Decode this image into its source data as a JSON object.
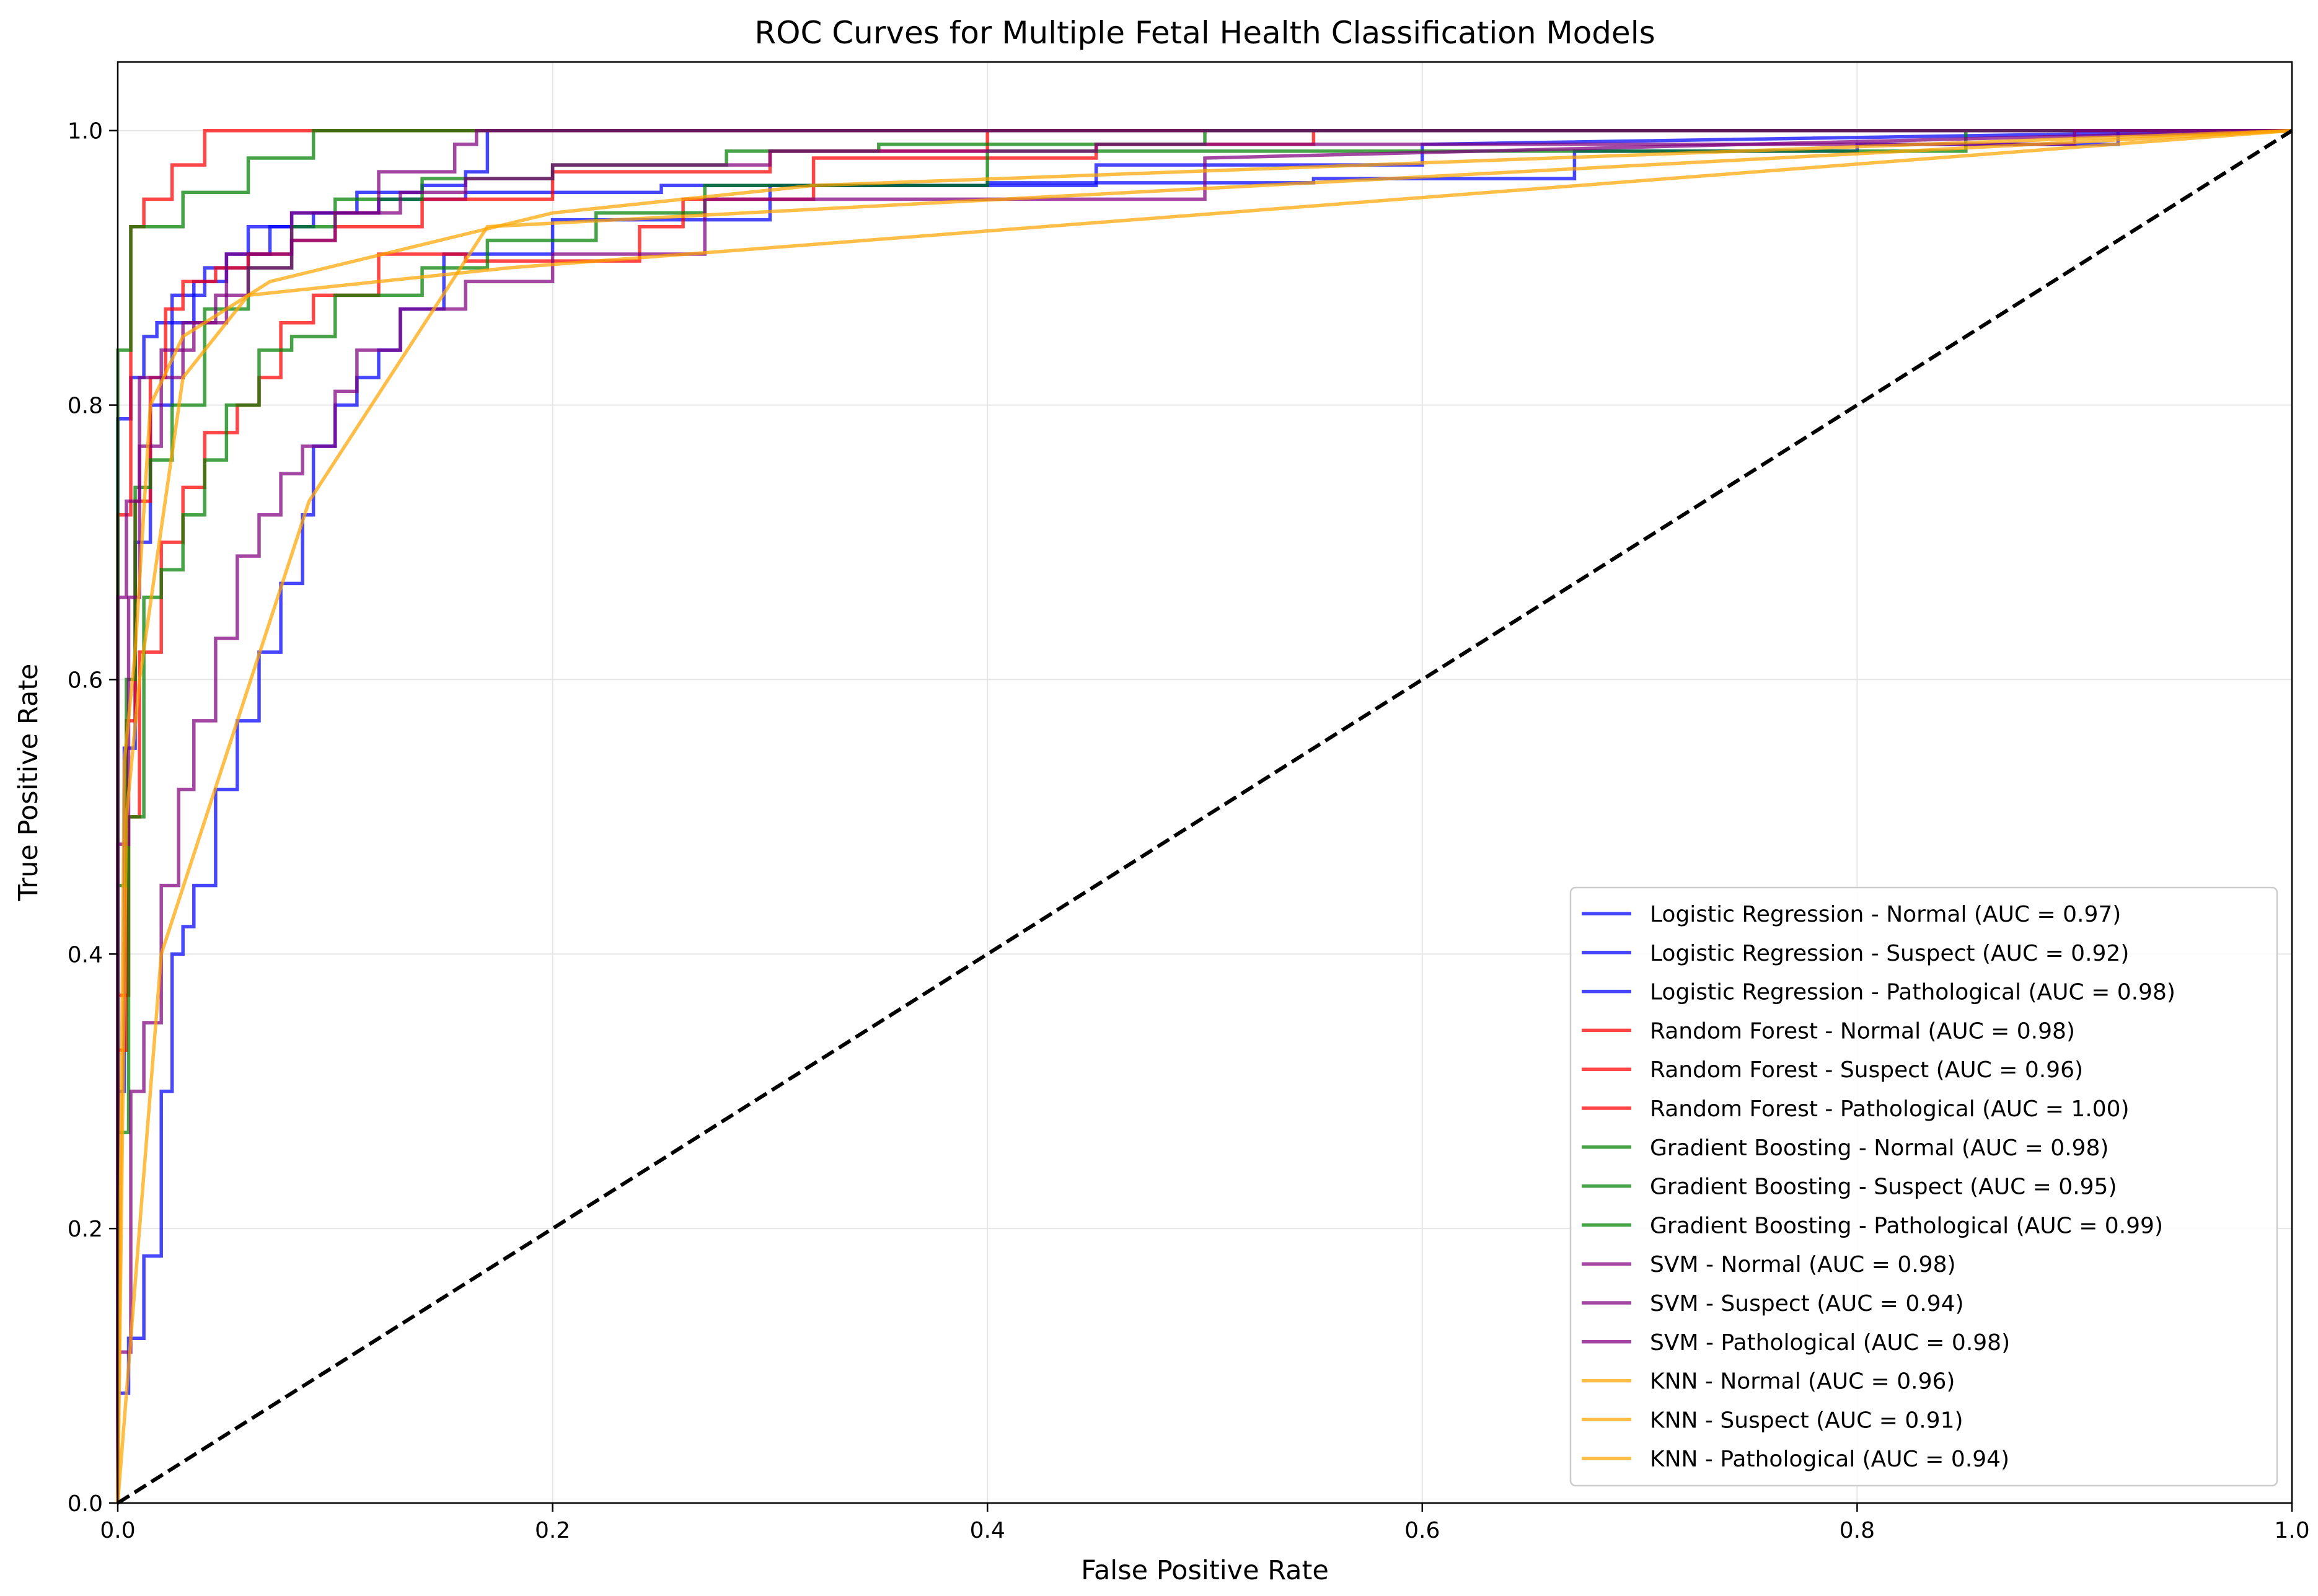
{
  "chart_data": {
    "type": "line",
    "title": "ROC Curves for Multiple Fetal Health Classification Models",
    "xlabel": "False Positive Rate",
    "ylabel": "True Positive Rate",
    "xlim": [
      0,
      1
    ],
    "ylim": [
      0,
      1.05
    ],
    "xticks": [
      0.0,
      0.2,
      0.4,
      0.6,
      0.8,
      1.0
    ],
    "yticks": [
      0.0,
      0.2,
      0.4,
      0.6,
      0.8,
      1.0
    ],
    "xtick_labels": [
      "0.0",
      "0.2",
      "0.4",
      "0.6",
      "0.8",
      "1.0"
    ],
    "ytick_labels": [
      "0.0",
      "0.2",
      "0.4",
      "0.6",
      "0.8",
      "1.0"
    ],
    "grid": true,
    "legend_position": "lower-right",
    "colors": {
      "Logistic Regression": "#0000ff",
      "Random Forest": "#ff0000",
      "Gradient Boosting": "#008000",
      "SVM": "#800080",
      "KNN": "#ffa500",
      "diagonal": "#000000"
    },
    "diagonal": {
      "x": [
        0,
        1
      ],
      "y": [
        0,
        1
      ],
      "style": "dashed"
    },
    "series": [
      {
        "name": "Logistic Regression - Normal (AUC = 0.97)",
        "model": "Logistic Regression",
        "color": "#0000ff",
        "x": [
          0,
          0,
          0.003,
          0.003,
          0.008,
          0.008,
          0.015,
          0.015,
          0.025,
          0.025,
          0.035,
          0.035,
          0.05,
          0.05,
          0.07,
          0.07,
          0.09,
          0.09,
          0.12,
          0.12,
          0.16,
          0.16,
          0.25,
          0.25,
          0.4,
          0.4,
          0.55,
          0.55,
          0.67,
          0.67,
          0.8,
          0.8,
          0.92,
          0.92,
          1.0
        ],
        "y": [
          0,
          0.3,
          0.3,
          0.55,
          0.55,
          0.7,
          0.7,
          0.8,
          0.8,
          0.86,
          0.86,
          0.89,
          0.89,
          0.91,
          0.91,
          0.93,
          0.93,
          0.94,
          0.94,
          0.95,
          0.95,
          0.955,
          0.955,
          0.96,
          0.96,
          0.962,
          0.962,
          0.965,
          0.965,
          0.985,
          0.985,
          0.99,
          0.99,
          1.0,
          1.0
        ]
      },
      {
        "name": "Logistic Regression - Suspect (AUC = 0.92)",
        "model": "Logistic Regression",
        "color": "#0000ff",
        "x": [
          0,
          0,
          0.005,
          0.005,
          0.012,
          0.012,
          0.02,
          0.02,
          0.025,
          0.025,
          0.03,
          0.03,
          0.035,
          0.035,
          0.045,
          0.045,
          0.055,
          0.055,
          0.065,
          0.065,
          0.075,
          0.075,
          0.085,
          0.085,
          0.09,
          0.09,
          0.1,
          0.1,
          0.11,
          0.11,
          0.12,
          0.12,
          0.13,
          0.13,
          0.15,
          0.15,
          0.2,
          0.2,
          0.3,
          0.3,
          0.45,
          0.45,
          0.6,
          0.6,
          1.0
        ],
        "y": [
          0,
          0.08,
          0.08,
          0.12,
          0.12,
          0.18,
          0.18,
          0.3,
          0.3,
          0.4,
          0.4,
          0.42,
          0.42,
          0.45,
          0.45,
          0.52,
          0.52,
          0.57,
          0.57,
          0.62,
          0.62,
          0.67,
          0.67,
          0.72,
          0.72,
          0.77,
          0.77,
          0.8,
          0.8,
          0.82,
          0.82,
          0.84,
          0.84,
          0.87,
          0.87,
          0.91,
          0.91,
          0.935,
          0.935,
          0.96,
          0.96,
          0.975,
          0.975,
          0.99,
          1.0
        ]
      },
      {
        "name": "Logistic Regression - Pathological (AUC = 0.98)",
        "model": "Logistic Regression",
        "color": "#0000ff",
        "x": [
          0,
          0,
          0.006,
          0.006,
          0.012,
          0.012,
          0.018,
          0.018,
          0.025,
          0.025,
          0.04,
          0.04,
          0.06,
          0.06,
          0.08,
          0.08,
          0.11,
          0.11,
          0.14,
          0.14,
          0.16,
          0.16,
          0.17,
          0.17,
          0.3,
          0.3,
          1.0
        ],
        "y": [
          0,
          0.79,
          0.79,
          0.82,
          0.82,
          0.85,
          0.85,
          0.86,
          0.86,
          0.88,
          0.88,
          0.9,
          0.9,
          0.93,
          0.93,
          0.94,
          0.94,
          0.955,
          0.955,
          0.96,
          0.96,
          0.97,
          0.97,
          1.0,
          1.0,
          1.0,
          1.0
        ]
      },
      {
        "name": "Random Forest - Normal (AUC = 0.98)",
        "model": "Random Forest",
        "color": "#ff0000",
        "x": [
          0,
          0,
          0.004,
          0.004,
          0.008,
          0.008,
          0.015,
          0.015,
          0.022,
          0.022,
          0.03,
          0.03,
          0.045,
          0.045,
          0.06,
          0.06,
          0.08,
          0.08,
          0.1,
          0.1,
          0.14,
          0.14,
          0.2,
          0.2,
          0.3,
          0.3,
          0.4,
          0.4,
          1.0
        ],
        "y": [
          0,
          0.33,
          0.33,
          0.57,
          0.57,
          0.73,
          0.73,
          0.82,
          0.82,
          0.87,
          0.87,
          0.89,
          0.89,
          0.9,
          0.9,
          0.91,
          0.91,
          0.92,
          0.92,
          0.93,
          0.93,
          0.95,
          0.95,
          0.97,
          0.97,
          0.985,
          0.985,
          1.0,
          1.0
        ]
      },
      {
        "name": "Random Forest - Suspect (AUC = 0.96)",
        "model": "Random Forest",
        "color": "#ff0000",
        "x": [
          0,
          0,
          0.005,
          0.005,
          0.01,
          0.01,
          0.02,
          0.02,
          0.03,
          0.03,
          0.04,
          0.04,
          0.055,
          0.055,
          0.065,
          0.065,
          0.075,
          0.075,
          0.09,
          0.09,
          0.12,
          0.12,
          0.16,
          0.16,
          0.24,
          0.24,
          0.26,
          0.26,
          0.32,
          0.32,
          0.45,
          0.45,
          0.55,
          0.55,
          1.0
        ],
        "y": [
          0,
          0.37,
          0.37,
          0.5,
          0.5,
          0.62,
          0.62,
          0.7,
          0.7,
          0.74,
          0.74,
          0.78,
          0.78,
          0.8,
          0.8,
          0.82,
          0.82,
          0.86,
          0.86,
          0.88,
          0.88,
          0.91,
          0.91,
          0.905,
          0.905,
          0.93,
          0.93,
          0.95,
          0.95,
          0.98,
          0.98,
          0.99,
          0.99,
          1.0,
          1.0
        ]
      },
      {
        "name": "Random Forest - Pathological (AUC = 1.00)",
        "model": "Random Forest",
        "color": "#ff0000",
        "x": [
          0,
          0,
          0.006,
          0.006,
          0.012,
          0.012,
          0.025,
          0.025,
          0.04,
          0.04,
          0.06,
          0.06,
          1.0
        ],
        "y": [
          0,
          0.72,
          0.72,
          0.93,
          0.93,
          0.95,
          0.95,
          0.975,
          0.975,
          1.0,
          1.0,
          1.0,
          1.0
        ]
      },
      {
        "name": "Gradient Boosting - Normal (AUC = 0.98)",
        "model": "Gradient Boosting",
        "color": "#008000",
        "x": [
          0,
          0,
          0.004,
          0.004,
          0.008,
          0.008,
          0.015,
          0.015,
          0.025,
          0.025,
          0.04,
          0.04,
          0.06,
          0.06,
          0.08,
          0.08,
          0.1,
          0.1,
          0.14,
          0.14,
          0.2,
          0.2,
          0.28,
          0.28,
          0.35,
          0.35,
          0.5,
          0.5,
          1.0
        ],
        "y": [
          0,
          0.45,
          0.45,
          0.6,
          0.6,
          0.74,
          0.74,
          0.76,
          0.76,
          0.8,
          0.8,
          0.87,
          0.87,
          0.9,
          0.9,
          0.93,
          0.93,
          0.95,
          0.95,
          0.965,
          0.965,
          0.975,
          0.975,
          0.985,
          0.985,
          0.99,
          0.99,
          1.0,
          1.0
        ]
      },
      {
        "name": "Gradient Boosting - Suspect (AUC = 0.95)",
        "model": "Gradient Boosting",
        "color": "#008000",
        "x": [
          0,
          0,
          0.005,
          0.005,
          0.012,
          0.012,
          0.02,
          0.02,
          0.03,
          0.03,
          0.04,
          0.04,
          0.05,
          0.05,
          0.065,
          0.065,
          0.08,
          0.08,
          0.1,
          0.1,
          0.14,
          0.14,
          0.17,
          0.17,
          0.22,
          0.22,
          0.27,
          0.27,
          0.4,
          0.4,
          0.85,
          0.85,
          1.0
        ],
        "y": [
          0,
          0.27,
          0.27,
          0.5,
          0.5,
          0.66,
          0.66,
          0.68,
          0.68,
          0.72,
          0.72,
          0.76,
          0.76,
          0.8,
          0.8,
          0.84,
          0.84,
          0.85,
          0.85,
          0.88,
          0.88,
          0.9,
          0.9,
          0.92,
          0.92,
          0.94,
          0.94,
          0.96,
          0.96,
          0.985,
          0.985,
          1.0,
          1.0
        ]
      },
      {
        "name": "Gradient Boosting - Pathological (AUC = 0.99)",
        "model": "Gradient Boosting",
        "color": "#008000",
        "x": [
          0,
          0,
          0.006,
          0.006,
          0.012,
          0.012,
          0.03,
          0.03,
          0.06,
          0.06,
          0.09,
          0.09,
          1.0
        ],
        "y": [
          0,
          0.84,
          0.84,
          0.93,
          0.93,
          0.93,
          0.93,
          0.955,
          0.955,
          0.98,
          0.98,
          1.0,
          1.0
        ]
      },
      {
        "name": "SVM - Normal (AUC = 0.98)",
        "model": "SVM",
        "color": "#800080",
        "x": [
          0,
          0,
          0.005,
          0.005,
          0.01,
          0.01,
          0.02,
          0.02,
          0.03,
          0.03,
          0.045,
          0.045,
          0.06,
          0.06,
          0.08,
          0.08,
          0.1,
          0.1,
          0.13,
          0.13,
          0.16,
          0.16,
          0.2,
          0.2,
          0.3,
          0.3,
          0.45,
          0.45,
          0.9,
          0.9,
          1.0
        ],
        "y": [
          0,
          0.48,
          0.48,
          0.66,
          0.66,
          0.77,
          0.77,
          0.82,
          0.82,
          0.86,
          0.86,
          0.88,
          0.88,
          0.9,
          0.9,
          0.92,
          0.92,
          0.94,
          0.94,
          0.955,
          0.955,
          0.965,
          0.965,
          0.975,
          0.975,
          0.985,
          0.985,
          0.99,
          0.99,
          1.0,
          1.0
        ]
      },
      {
        "name": "SVM - Suspect (AUC = 0.94)",
        "model": "SVM",
        "color": "#800080",
        "x": [
          0,
          0,
          0.006,
          0.006,
          0.012,
          0.012,
          0.02,
          0.02,
          0.028,
          0.028,
          0.035,
          0.035,
          0.045,
          0.045,
          0.055,
          0.055,
          0.065,
          0.065,
          0.075,
          0.075,
          0.085,
          0.085,
          0.1,
          0.1,
          0.11,
          0.11,
          0.13,
          0.13,
          0.16,
          0.16,
          0.2,
          0.2,
          0.27,
          0.27,
          0.5,
          0.5,
          1.0
        ],
        "y": [
          0,
          0.11,
          0.11,
          0.3,
          0.3,
          0.35,
          0.35,
          0.45,
          0.45,
          0.52,
          0.52,
          0.57,
          0.57,
          0.63,
          0.63,
          0.69,
          0.69,
          0.72,
          0.72,
          0.75,
          0.75,
          0.77,
          0.77,
          0.81,
          0.81,
          0.84,
          0.84,
          0.87,
          0.87,
          0.89,
          0.89,
          0.91,
          0.91,
          0.95,
          0.95,
          0.98,
          1.0
        ]
      },
      {
        "name": "SVM - Pathological (AUC = 0.98)",
        "model": "SVM",
        "color": "#800080",
        "x": [
          0,
          0,
          0.004,
          0.004,
          0.01,
          0.01,
          0.02,
          0.02,
          0.035,
          0.035,
          0.05,
          0.05,
          0.08,
          0.08,
          0.12,
          0.12,
          0.155,
          0.155,
          0.165,
          0.165,
          1.0
        ],
        "y": [
          0,
          0.66,
          0.66,
          0.73,
          0.73,
          0.82,
          0.82,
          0.84,
          0.84,
          0.86,
          0.86,
          0.91,
          0.91,
          0.94,
          0.94,
          0.97,
          0.97,
          0.99,
          0.99,
          1.0,
          1.0
        ]
      },
      {
        "name": "KNN - Normal (AUC = 0.96)",
        "model": "KNN",
        "color": "#ffa500",
        "x": [
          0,
          0.003,
          0.008,
          0.015,
          0.03,
          0.07,
          0.2,
          0.32,
          1.0
        ],
        "y": [
          0,
          0.54,
          0.62,
          0.8,
          0.85,
          0.89,
          0.94,
          0.96,
          1.0
        ]
      },
      {
        "name": "KNN - Suspect (AUC = 0.91)",
        "model": "KNN",
        "color": "#ffa500",
        "x": [
          0,
          0.02,
          0.088,
          0.17,
          1.0
        ],
        "y": [
          0,
          0.4,
          0.73,
          0.93,
          1.0
        ]
      },
      {
        "name": "KNN - Pathological (AUC = 0.94)",
        "model": "KNN",
        "color": "#ffa500",
        "x": [
          0,
          0.004,
          0.01,
          0.03,
          0.06,
          0.18,
          1.0
        ],
        "y": [
          0,
          0.5,
          0.6,
          0.82,
          0.88,
          0.9,
          1.0
        ]
      }
    ]
  }
}
